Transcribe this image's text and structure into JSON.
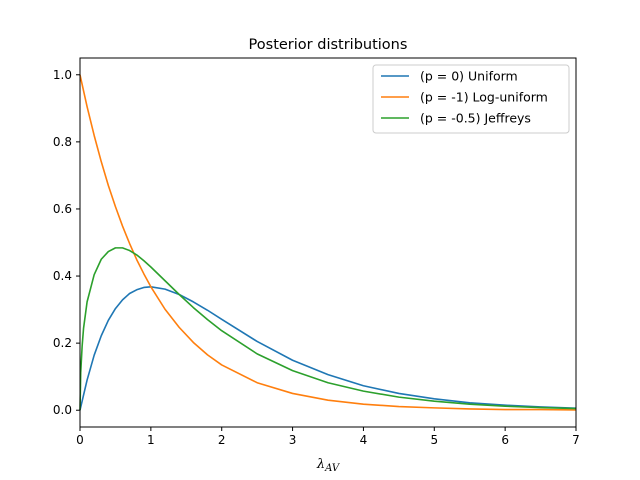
{
  "chart_data": {
    "type": "line",
    "title": "Posterior distributions",
    "xlabel": "λ",
    "xlabel_sub": "AV",
    "ylabel": "",
    "xlim": [
      0,
      7
    ],
    "ylim": [
      -0.05,
      1.05
    ],
    "xticks": [
      "0",
      "1",
      "2",
      "3",
      "4",
      "5",
      "6",
      "7"
    ],
    "yticks": [
      "0.0",
      "0.2",
      "0.4",
      "0.6",
      "0.8",
      "1.0"
    ],
    "grid": false,
    "legend_position": "upper-right",
    "series": [
      {
        "name": "(p = 0) Uniform",
        "color": "#1f77b4",
        "x": [
          0,
          0.1,
          0.2,
          0.3,
          0.4,
          0.5,
          0.6,
          0.7,
          0.8,
          0.9,
          1.0,
          1.2,
          1.4,
          1.6,
          1.8,
          2.0,
          2.5,
          3.0,
          3.5,
          4.0,
          4.5,
          5.0,
          5.5,
          6.0,
          6.5,
          7.0
        ],
        "y": [
          0,
          0.09,
          0.164,
          0.222,
          0.268,
          0.303,
          0.329,
          0.348,
          0.359,
          0.366,
          0.368,
          0.361,
          0.345,
          0.323,
          0.298,
          0.271,
          0.205,
          0.149,
          0.106,
          0.073,
          0.05,
          0.034,
          0.022,
          0.015,
          0.01,
          0.006
        ]
      },
      {
        "name": "(p = -1) Log-uniform",
        "color": "#ff7f0e",
        "x": [
          0,
          0.1,
          0.2,
          0.3,
          0.4,
          0.5,
          0.6,
          0.7,
          0.8,
          0.9,
          1.0,
          1.2,
          1.4,
          1.6,
          1.8,
          2.0,
          2.5,
          3.0,
          3.5,
          4.0,
          4.5,
          5.0,
          5.5,
          6.0,
          6.5,
          7.0
        ],
        "y": [
          1.0,
          0.905,
          0.819,
          0.741,
          0.67,
          0.607,
          0.549,
          0.497,
          0.449,
          0.407,
          0.368,
          0.301,
          0.247,
          0.202,
          0.165,
          0.135,
          0.082,
          0.05,
          0.03,
          0.018,
          0.011,
          0.007,
          0.004,
          0.002,
          0.002,
          0.001
        ]
      },
      {
        "name": "(p = -0.5) Jeffreys",
        "color": "#2ca02c",
        "x": [
          0,
          0.01,
          0.03,
          0.05,
          0.1,
          0.2,
          0.3,
          0.4,
          0.5,
          0.6,
          0.7,
          0.8,
          0.9,
          1.0,
          1.2,
          1.4,
          1.6,
          1.8,
          2.0,
          2.5,
          3.0,
          3.5,
          4.0,
          4.5,
          5.0,
          5.5,
          6.0,
          6.5,
          7.0
        ],
        "y": [
          0,
          0.112,
          0.191,
          0.244,
          0.323,
          0.404,
          0.45,
          0.473,
          0.484,
          0.484,
          0.476,
          0.463,
          0.446,
          0.427,
          0.386,
          0.345,
          0.306,
          0.27,
          0.237,
          0.168,
          0.118,
          0.082,
          0.057,
          0.039,
          0.027,
          0.018,
          0.012,
          0.008,
          0.005
        ]
      }
    ]
  }
}
